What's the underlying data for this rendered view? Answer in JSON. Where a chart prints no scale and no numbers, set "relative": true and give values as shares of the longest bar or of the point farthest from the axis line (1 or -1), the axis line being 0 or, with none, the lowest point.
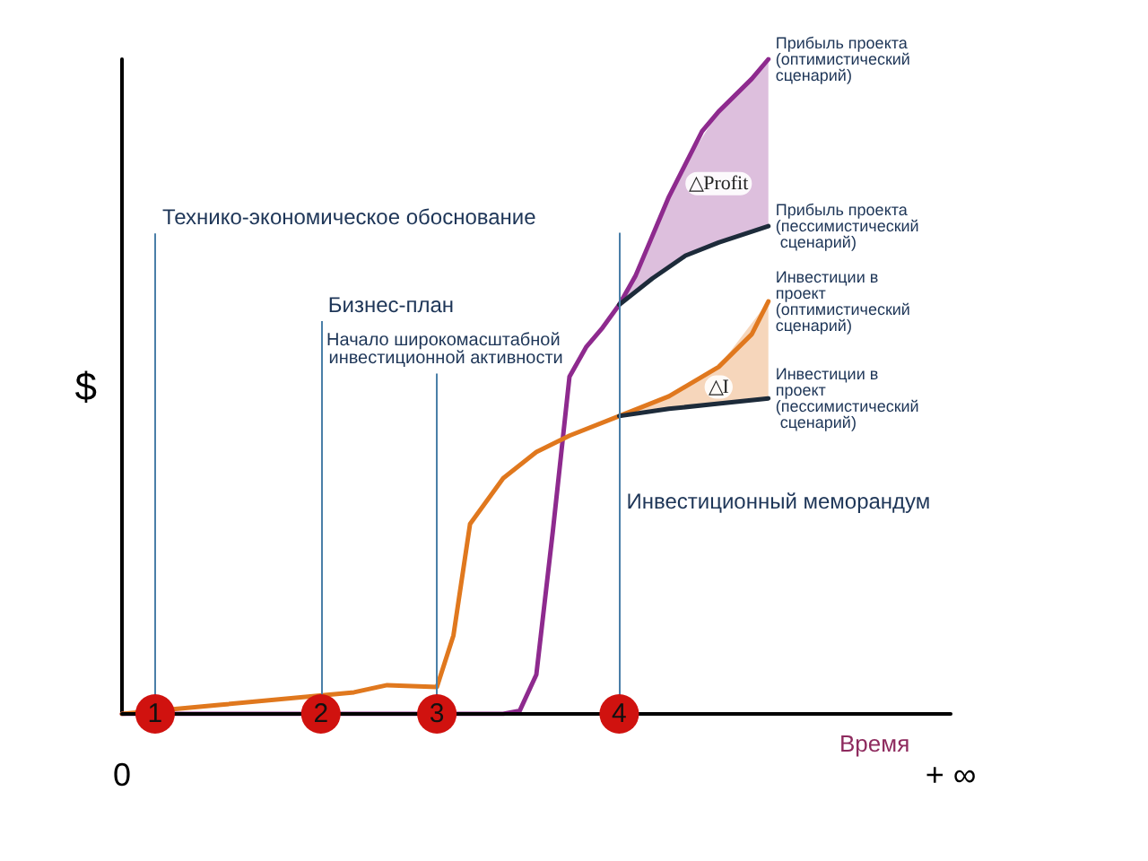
{
  "chart_data": {
    "type": "line",
    "relative": true,
    "ylabel": "$",
    "xlabel": "Время",
    "legend": false,
    "grid": false,
    "marker": "none",
    "line_style": "solid",
    "categories": [
      "0",
      null,
      "1",
      null,
      null,
      null,
      null,
      null,
      null,
      null,
      null,
      null,
      "2",
      null,
      null,
      null,
      null,
      null,
      null,
      "3",
      null,
      null,
      null,
      null,
      null,
      null,
      null,
      null,
      null,
      null,
      "4",
      null,
      null,
      null,
      null,
      null,
      null,
      null,
      null,
      null,
      null,
      null,
      null,
      null,
      null,
      null,
      null,
      null,
      null,
      null,
      "+ ∞"
    ],
    "series": [
      {
        "name": "Прибыль проекта (оптимистический сценарий)",
        "color": "#8e2a8e",
        "values": [
          0,
          null,
          null,
          null,
          null,
          null,
          null,
          null,
          null,
          null,
          null,
          null,
          null,
          null,
          null,
          null,
          null,
          null,
          null,
          null,
          null,
          null,
          null,
          0,
          0.005,
          0.06,
          0.28,
          0.515,
          0.56,
          0.59,
          0.625,
          0.67,
          0.73,
          0.79,
          0.84,
          0.89,
          0.92,
          0.945,
          0.97,
          1,
          null,
          null,
          null,
          null,
          null,
          null,
          null,
          null,
          null,
          null,
          null
        ],
        "lower": [
          null,
          null,
          null,
          null,
          null,
          null,
          null,
          null,
          null,
          null,
          null,
          null,
          null,
          null,
          null,
          null,
          null,
          null,
          null,
          null,
          null,
          null,
          null,
          null,
          null,
          null,
          null,
          null,
          null,
          null,
          0.625,
          null,
          0.665,
          null,
          0.7,
          null,
          0.72,
          null,
          null,
          0.745,
          null,
          null,
          null,
          null,
          null,
          null,
          null,
          null,
          null,
          null,
          null
        ],
        "upper": [
          null,
          null,
          null,
          null,
          null,
          null,
          null,
          null,
          null,
          null,
          null,
          null,
          null,
          null,
          null,
          null,
          null,
          null,
          null,
          null,
          null,
          null,
          null,
          null,
          null,
          null,
          null,
          null,
          null,
          null,
          0.625,
          null,
          0.73,
          null,
          0.84,
          null,
          0.92,
          null,
          null,
          1,
          null,
          null,
          null,
          null,
          null,
          null,
          null,
          null,
          null,
          null,
          null
        ]
      },
      {
        "name": "Прибыль проекта (пессимистический сценарий)",
        "color": "#1d2b3a",
        "values": [
          null,
          null,
          null,
          null,
          null,
          null,
          null,
          null,
          null,
          null,
          null,
          null,
          null,
          null,
          null,
          null,
          null,
          null,
          null,
          null,
          null,
          null,
          null,
          null,
          null,
          null,
          null,
          null,
          null,
          null,
          0.625,
          null,
          0.665,
          null,
          0.7,
          null,
          0.72,
          null,
          null,
          0.745,
          null,
          null,
          null,
          null,
          null,
          null,
          null,
          null,
          null,
          null,
          null
        ]
      },
      {
        "name": "Инвестиции в проект (оптимистический сценарий)",
        "color": "#e0781e",
        "values": [
          0,
          null,
          null,
          null,
          null,
          null,
          0.014,
          null,
          null,
          null,
          null,
          null,
          null,
          null,
          0.033,
          null,
          0.044,
          null,
          null,
          0.041,
          0.12,
          0.29,
          null,
          0.36,
          null,
          0.4,
          null,
          0.425,
          null,
          null,
          0.455,
          null,
          null,
          0.485,
          null,
          null,
          0.53,
          null,
          0.58,
          0.63,
          null,
          null,
          null,
          null,
          null,
          null,
          null,
          null,
          null,
          null,
          null
        ],
        "lower": [
          null,
          null,
          null,
          null,
          null,
          null,
          null,
          null,
          null,
          null,
          null,
          null,
          null,
          null,
          null,
          null,
          null,
          null,
          null,
          null,
          null,
          null,
          null,
          null,
          null,
          null,
          null,
          null,
          null,
          null,
          0.455,
          null,
          null,
          0.466,
          null,
          null,
          0.474,
          null,
          null,
          0.482,
          null,
          null,
          null,
          null,
          null,
          null,
          null,
          null,
          null,
          null,
          null
        ],
        "upper": [
          null,
          null,
          null,
          null,
          null,
          null,
          null,
          null,
          null,
          null,
          null,
          null,
          null,
          null,
          null,
          null,
          null,
          null,
          null,
          null,
          null,
          null,
          null,
          null,
          null,
          null,
          null,
          null,
          null,
          null,
          0.455,
          null,
          null,
          0.485,
          null,
          null,
          0.53,
          null,
          null,
          0.63,
          null,
          null,
          null,
          null,
          null,
          null,
          null,
          null,
          null,
          null,
          null
        ]
      },
      {
        "name": "Инвестиции в проект (пессимистический сценарий)",
        "color": "#1d2b3a",
        "values": [
          null,
          null,
          null,
          null,
          null,
          null,
          null,
          null,
          null,
          null,
          null,
          null,
          null,
          null,
          null,
          null,
          null,
          null,
          null,
          null,
          null,
          null,
          null,
          null,
          null,
          null,
          null,
          null,
          null,
          null,
          0.455,
          null,
          null,
          0.466,
          null,
          null,
          0.474,
          null,
          null,
          0.482,
          null,
          null,
          null,
          null,
          null,
          null,
          null,
          null,
          null,
          null,
          null
        ]
      }
    ],
    "ref_lines": [
      {
        "axis": "x",
        "value": "1",
        "label": "Технико-экономическое обоснование",
        "color": "#4a7fa8"
      },
      {
        "axis": "x",
        "value": "2",
        "label": "Бизнес-план",
        "color": "#4a7fa8"
      },
      {
        "axis": "x",
        "value": "3",
        "label": "Начало широкомасштабной инвестиционной активности",
        "color": "#4a7fa8"
      },
      {
        "axis": "x",
        "value": "4",
        "label": "Инвестиционный меморандум",
        "color": "#4a7fa8"
      }
    ],
    "annotations": [
      "△Profit",
      "△I"
    ]
  }
}
